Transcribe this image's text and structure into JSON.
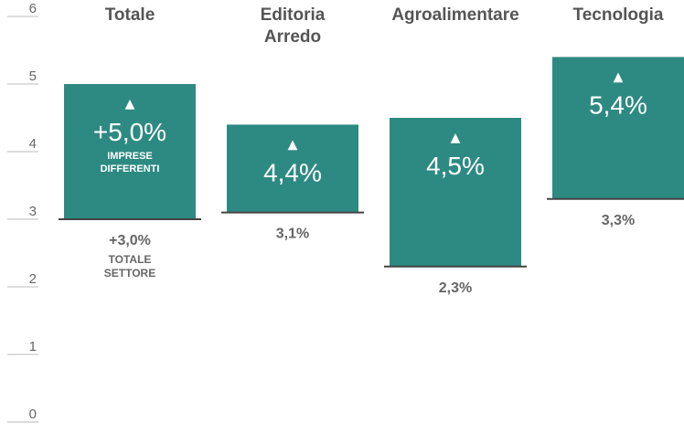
{
  "chart_data": {
    "type": "bar",
    "title": "",
    "xlabel": "",
    "ylabel": "",
    "ylim": [
      0,
      6
    ],
    "yticks": [
      0,
      1,
      2,
      3,
      4,
      5,
      6
    ],
    "categories": [
      "Totale",
      "Editoria Arredo",
      "Agroalimentare",
      "Tecnologia"
    ],
    "category_lines": [
      [
        "Totale"
      ],
      [
        "Editoria",
        "Arredo"
      ],
      [
        "Agroalimentare"
      ],
      [
        "Tecnologia"
      ]
    ],
    "bars": [
      {
        "category": "Totale",
        "base": 3.0,
        "top": 5.0,
        "label": "+5,0%",
        "sublabel": [
          "IMPRESE",
          "DIFFERENTI"
        ],
        "base_label": "+3,0%",
        "base_sublabel": [
          "TOTALE",
          "SETTORE"
        ]
      },
      {
        "category": "Editoria Arredo",
        "base": 3.1,
        "top": 4.4,
        "label": "4,4%",
        "sublabel": [],
        "base_label": "3,1%",
        "base_sublabel": []
      },
      {
        "category": "Agroalimentare",
        "base": 2.3,
        "top": 4.5,
        "label": "4,5%",
        "sublabel": [],
        "base_label": "2,3%",
        "base_sublabel": []
      },
      {
        "category": "Tecnologia",
        "base": 3.3,
        "top": 5.4,
        "label": "5,4%",
        "sublabel": [],
        "base_label": "3,3%",
        "base_sublabel": []
      }
    ],
    "bar_color": "#2d8a82",
    "grid": false,
    "legend": "none"
  }
}
